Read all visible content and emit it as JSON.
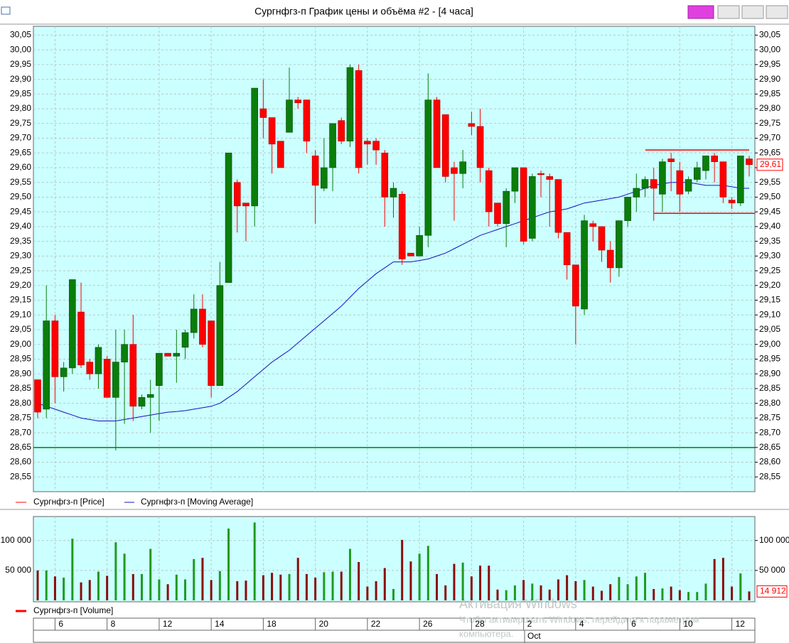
{
  "window": {
    "title": "Сургнфгз-п График цены и объёма #2 - [4 часа]"
  },
  "chart_data": {
    "type": "candlestick",
    "categories": [
      null,
      null,
      "6",
      null,
      null,
      null,
      null,
      null,
      "8",
      null,
      null,
      null,
      null,
      null,
      "12",
      null,
      null,
      null,
      null,
      null,
      "14",
      null,
      null,
      null,
      null,
      null,
      "18",
      null,
      null,
      null,
      null,
      null,
      "20",
      null,
      null,
      null,
      null,
      null,
      "22",
      null,
      null,
      null,
      null,
      null,
      "26",
      null,
      null,
      null,
      null,
      null,
      "28",
      null,
      null,
      null,
      null,
      null,
      "2",
      null,
      null,
      null,
      null,
      null,
      "4",
      null,
      null,
      null,
      null,
      null,
      "6",
      null,
      null,
      null,
      null,
      null,
      "10",
      null,
      null,
      null,
      null,
      null,
      "12",
      null,
      null
    ],
    "month_label": "Oct",
    "open": [
      28.88,
      28.78,
      29.08,
      28.89,
      28.92,
      29.11,
      28.94,
      28.9,
      28.95,
      28.82,
      28.94,
      29.0,
      28.79,
      28.82,
      28.86,
      28.97,
      28.96,
      28.99,
      29.04,
      29.12,
      29.08,
      28.86,
      29.21,
      29.55,
      29.48,
      29.47,
      29.8,
      29.77,
      29.69,
      29.72,
      29.83,
      29.83,
      29.64,
      29.53,
      29.6,
      29.76,
      29.69,
      29.93,
      29.69,
      29.69,
      29.65,
      29.5,
      29.51,
      29.31,
      29.3,
      29.37,
      29.83,
      29.78,
      29.6,
      29.58,
      29.75,
      29.74,
      29.59,
      29.48,
      29.41,
      29.52,
      29.6,
      29.36,
      29.58,
      29.57,
      29.56,
      29.38,
      29.27,
      29.12,
      29.41,
      29.4,
      29.32,
      29.26,
      29.42,
      29.5,
      29.53,
      29.56,
      29.51,
      29.63,
      29.59,
      29.52,
      29.56,
      29.59,
      29.64,
      29.62,
      29.49,
      29.48,
      29.63
    ],
    "high": [
      28.88,
      29.2,
      29.1,
      28.94,
      29.22,
      29.21,
      28.95,
      29.0,
      28.96,
      29.05,
      29.05,
      29.1,
      28.83,
      28.88,
      28.97,
      28.97,
      29.05,
      29.05,
      29.17,
      29.17,
      29.08,
      29.28,
      29.65,
      29.56,
      29.48,
      29.87,
      29.9,
      29.77,
      29.69,
      29.94,
      29.84,
      29.83,
      29.66,
      29.7,
      29.75,
      29.77,
      29.95,
      29.95,
      29.7,
      29.7,
      29.66,
      29.55,
      29.52,
      29.31,
      29.4,
      29.92,
      29.84,
      29.78,
      29.62,
      29.66,
      29.79,
      29.8,
      29.6,
      29.48,
      29.53,
      29.6,
      29.6,
      29.58,
      29.59,
      29.58,
      29.56,
      29.38,
      29.27,
      29.44,
      29.42,
      29.4,
      29.35,
      29.42,
      29.5,
      29.58,
      29.57,
      29.6,
      29.63,
      29.65,
      29.62,
      29.57,
      29.62,
      29.64,
      29.65,
      29.62,
      29.5,
      29.64,
      29.64
    ],
    "low": [
      28.75,
      28.75,
      28.8,
      28.84,
      28.9,
      28.92,
      28.88,
      28.85,
      28.82,
      28.64,
      28.73,
      28.74,
      28.78,
      28.7,
      28.74,
      28.96,
      28.87,
      28.95,
      29.02,
      28.99,
      28.82,
      28.86,
      29.21,
      29.38,
      29.35,
      29.4,
      29.7,
      29.58,
      29.6,
      29.72,
      29.8,
      29.65,
      29.41,
      29.52,
      29.52,
      29.68,
      29.67,
      29.58,
      29.61,
      29.61,
      29.4,
      29.43,
      29.27,
      29.3,
      29.3,
      29.33,
      29.6,
      29.55,
      29.42,
      29.53,
      29.71,
      29.55,
      29.4,
      29.4,
      29.33,
      29.48,
      29.34,
      29.35,
      29.5,
      29.4,
      29.36,
      29.22,
      29.0,
      29.1,
      29.35,
      29.28,
      29.21,
      29.23,
      29.4,
      29.45,
      29.5,
      29.42,
      29.45,
      29.52,
      29.45,
      29.51,
      29.55,
      29.56,
      29.55,
      29.48,
      29.46,
      29.47,
      29.57
    ],
    "close": [
      28.77,
      29.08,
      28.89,
      28.92,
      29.22,
      28.93,
      28.9,
      28.99,
      28.82,
      28.94,
      29.0,
      28.79,
      28.82,
      28.83,
      28.97,
      28.96,
      28.97,
      29.04,
      29.12,
      29.0,
      28.86,
      29.2,
      29.65,
      29.47,
      29.47,
      29.87,
      29.77,
      29.68,
      29.6,
      29.83,
      29.82,
      29.69,
      29.54,
      29.6,
      29.75,
      29.69,
      29.94,
      29.6,
      29.68,
      29.66,
      29.5,
      29.53,
      29.29,
      29.3,
      29.37,
      29.83,
      29.6,
      29.57,
      29.58,
      29.62,
      29.74,
      29.6,
      29.45,
      29.41,
      29.52,
      29.6,
      29.35,
      29.57,
      29.58,
      29.56,
      29.38,
      29.27,
      29.13,
      29.42,
      29.4,
      29.32,
      29.26,
      29.42,
      29.5,
      29.53,
      29.56,
      29.53,
      29.62,
      29.62,
      29.51,
      29.56,
      29.6,
      29.64,
      29.62,
      29.5,
      29.48,
      29.64,
      29.61
    ],
    "up_color": "#0b7d0b",
    "down_color": "#ff0000",
    "series": [
      {
        "name": "Сургнфгз-п [Price]",
        "color": "#ff0000"
      },
      {
        "name": "Сургнфгз-п [Moving Average]",
        "color": "#1010c0",
        "values": [
          28.8,
          28.79,
          28.78,
          28.77,
          28.76,
          28.75,
          28.745,
          28.74,
          28.74,
          28.74,
          28.745,
          28.75,
          28.755,
          28.76,
          28.765,
          28.77,
          28.772,
          28.775,
          28.78,
          28.785,
          28.79,
          28.8,
          28.82,
          28.84,
          28.865,
          28.89,
          28.915,
          28.94,
          28.96,
          28.98,
          29.005,
          29.03,
          29.055,
          29.08,
          29.105,
          29.13,
          29.16,
          29.19,
          29.215,
          29.24,
          29.26,
          29.28,
          29.28,
          29.28,
          29.285,
          29.29,
          29.3,
          29.31,
          29.325,
          29.34,
          29.355,
          29.37,
          29.38,
          29.39,
          29.4,
          29.41,
          29.42,
          29.43,
          29.44,
          29.45,
          29.455,
          29.46,
          29.47,
          29.48,
          29.485,
          29.49,
          29.495,
          29.5,
          29.51,
          29.52,
          29.53,
          29.54,
          29.545,
          29.55,
          29.55,
          29.55,
          29.545,
          29.54,
          29.54,
          29.54,
          29.535,
          29.53,
          29.53
        ]
      }
    ],
    "ylim": [
      28.5,
      30.08
    ],
    "yticks": [
      {
        "value": 28.55,
        "label": "28,55"
      },
      {
        "value": 28.6,
        "label": "28,60"
      },
      {
        "value": 28.65,
        "label": "28,65"
      },
      {
        "value": 28.7,
        "label": "28,70"
      },
      {
        "value": 28.75,
        "label": "28,75"
      },
      {
        "value": 28.8,
        "label": "28,80"
      },
      {
        "value": 28.85,
        "label": "28,85"
      },
      {
        "value": 28.9,
        "label": "28,90"
      },
      {
        "value": 28.95,
        "label": "28,95"
      },
      {
        "value": 29.0,
        "label": "29,00"
      },
      {
        "value": 29.05,
        "label": "29,05"
      },
      {
        "value": 29.1,
        "label": "29,10"
      },
      {
        "value": 29.15,
        "label": "29,15"
      },
      {
        "value": 29.2,
        "label": "29,20"
      },
      {
        "value": 29.25,
        "label": "29,25"
      },
      {
        "value": 29.3,
        "label": "29,30"
      },
      {
        "value": 29.35,
        "label": "29,35"
      },
      {
        "value": 29.4,
        "label": "29,40"
      },
      {
        "value": 29.45,
        "label": "29,45"
      },
      {
        "value": 29.5,
        "label": "29,50"
      },
      {
        "value": 29.55,
        "label": "29,55"
      },
      {
        "value": 29.6,
        "label": "29,60"
      },
      {
        "value": 29.65,
        "label": "29,65"
      },
      {
        "value": 29.7,
        "label": "29,70"
      },
      {
        "value": 29.75,
        "label": "29,75"
      },
      {
        "value": 29.8,
        "label": "29,80"
      },
      {
        "value": 29.85,
        "label": "29,85"
      },
      {
        "value": 29.9,
        "label": "29,90"
      },
      {
        "value": 29.95,
        "label": "29,95"
      },
      {
        "value": 30.0,
        "label": "30,00"
      },
      {
        "value": 30.05,
        "label": "30,05"
      }
    ],
    "grid": true,
    "lines": [
      {
        "value": 28.65,
        "color": "#008000"
      },
      {
        "value": 29.66,
        "color": "#ff0000"
      },
      {
        "value": 29.445,
        "color": "#ff0000"
      }
    ],
    "last_price": {
      "value": 29.61,
      "label": "29,61"
    },
    "volume": {
      "name": "Сургнфгз-п [Volume]",
      "up_color": "#1f9a1f",
      "down_color": "#8b0a0a",
      "values": [
        50000,
        50000,
        40000,
        38000,
        103000,
        30000,
        34000,
        48000,
        41000,
        97000,
        78000,
        44000,
        44000,
        86000,
        35000,
        27000,
        43000,
        35000,
        69000,
        71000,
        34000,
        49000,
        120000,
        32000,
        33000,
        130000,
        42000,
        46000,
        43000,
        44000,
        71000,
        44000,
        38000,
        47000,
        48000,
        48000,
        86000,
        64000,
        23000,
        32000,
        54000,
        19000,
        101000,
        65000,
        78000,
        91000,
        44000,
        25000,
        61000,
        63000,
        40000,
        58000,
        58000,
        18000,
        17000,
        25000,
        34000,
        28000,
        25000,
        18000,
        35000,
        42000,
        32000,
        34000,
        23000,
        16000,
        27000,
        39000,
        27000,
        40000,
        46000,
        19000,
        20000,
        23000,
        17000,
        14000,
        14000,
        28000,
        69000,
        71000,
        23000,
        45000,
        14912
      ],
      "ylim": [
        0,
        140000
      ],
      "yticks": [
        {
          "value": 50000,
          "label": "50 000"
        },
        {
          "value": 100000,
          "label": "100 000"
        }
      ],
      "last": {
        "value": 14912,
        "label": "14 912"
      }
    }
  },
  "watermark": {
    "title": "Активация Windows",
    "line1": "Чтобы активировать Windows, перейдите к параметрам",
    "line2": "компьютера."
  }
}
